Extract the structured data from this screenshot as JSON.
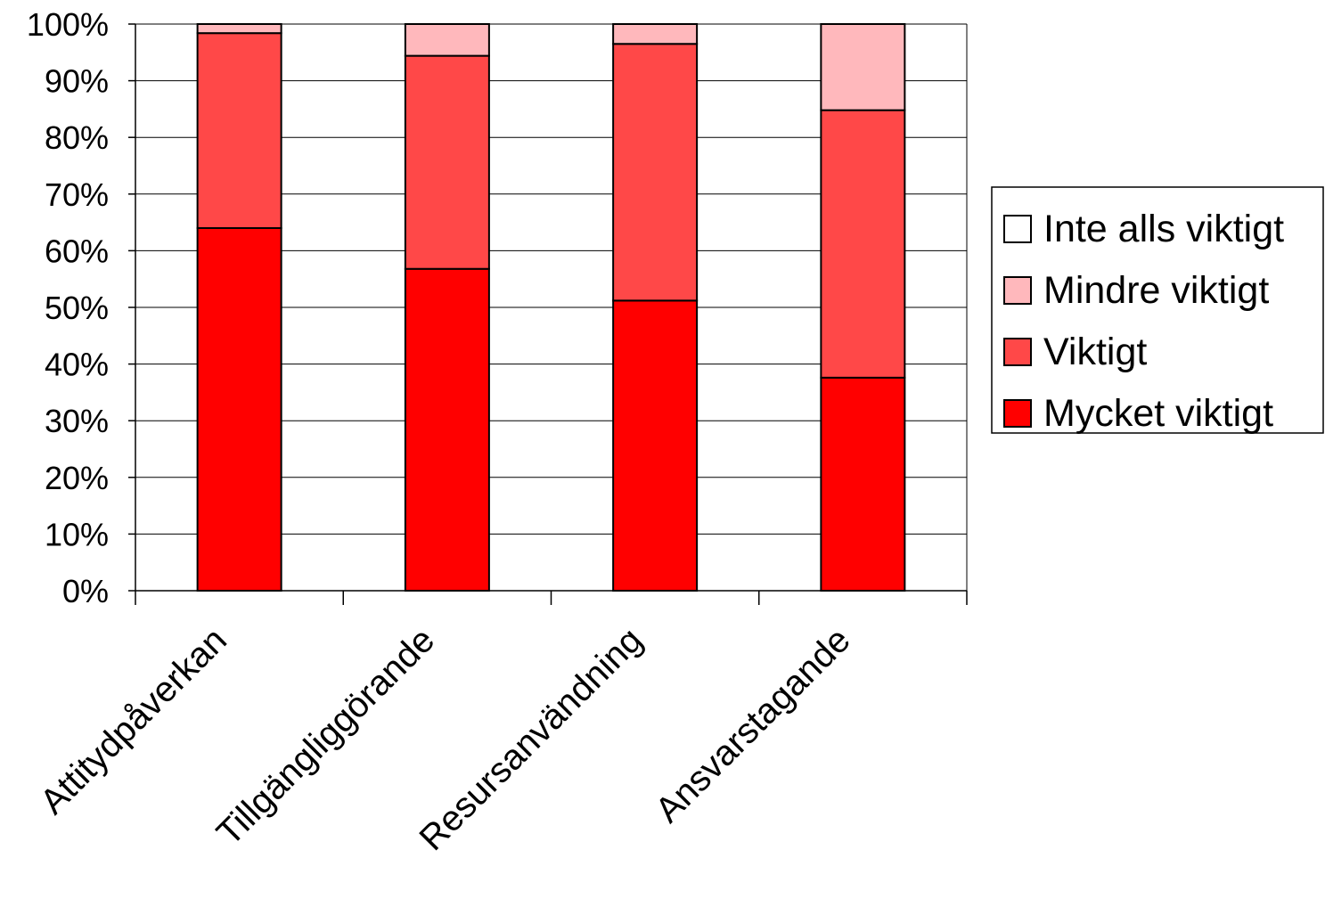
{
  "chart_data": {
    "type": "bar",
    "stacked": true,
    "percent_stacked": true,
    "categories": [
      "Attitydpåverkan",
      "Tillgängliggörande",
      "Resursanvändning",
      "Ansvarstagande"
    ],
    "series": [
      {
        "name": "Mycket viktigt",
        "color": "#ff0000",
        "values": [
          64.0,
          56.8,
          51.2,
          37.6
        ]
      },
      {
        "name": "Viktigt",
        "color": "#ff4848",
        "values": [
          34.4,
          37.6,
          45.3,
          47.2
        ]
      },
      {
        "name": "Mindre viktigt",
        "color": "#ffb8bc",
        "values": [
          1.6,
          5.6,
          3.5,
          15.2
        ]
      },
      {
        "name": "Inte alls viktigt",
        "color": "#ffffff",
        "values": [
          0,
          0,
          0,
          0
        ]
      }
    ],
    "y_ticks": [
      "0%",
      "10%",
      "20%",
      "30%",
      "40%",
      "50%",
      "60%",
      "70%",
      "80%",
      "90%",
      "100%"
    ],
    "ylim": [
      0,
      100
    ],
    "grid": true,
    "legend_position": "right",
    "legend_order": [
      "Inte alls viktigt",
      "Mindre viktigt",
      "Viktigt",
      "Mycket viktigt"
    ],
    "title": "",
    "xlabel": "",
    "ylabel": ""
  }
}
